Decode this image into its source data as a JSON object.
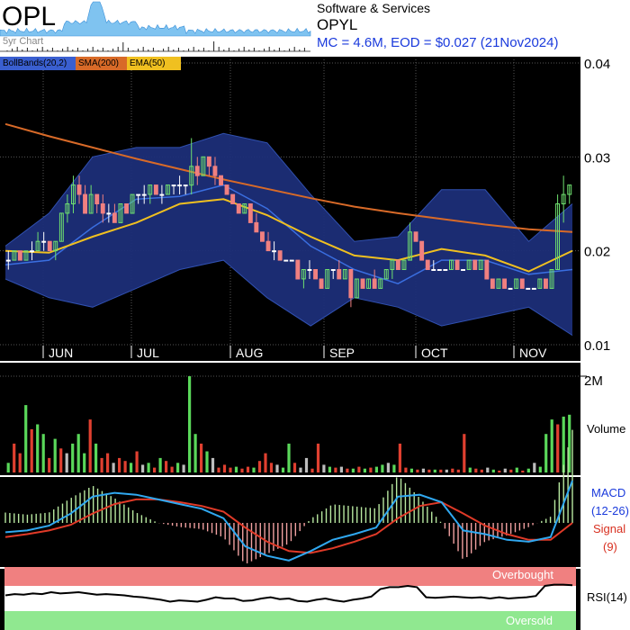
{
  "header": {
    "ticker": "OPL",
    "sub_label": "5yr Chart",
    "sector": "Software & Services",
    "code": "OPYL",
    "summary": "MC = 4.6M, EOD = $0.027 (21Nov2024)"
  },
  "legend": [
    {
      "label": "BollBands(20,2)",
      "color": "#3a5fd0"
    },
    {
      "label": "SMA(200)",
      "color": "#d86a28"
    },
    {
      "label": "EMA(50)",
      "color": "#f0c020"
    }
  ],
  "chart_data": {
    "type": "candlestick",
    "x_labels": [
      "JUN",
      "JUL",
      "AUG",
      "SEP",
      "OCT",
      "NOV"
    ],
    "price_ticks": [
      "0.04",
      "0.03",
      "0.02",
      "0.01"
    ],
    "ylim": [
      0.01,
      0.04
    ],
    "candles": [
      [
        0.019,
        0.02,
        0.018,
        0.019
      ],
      [
        0.019,
        0.02,
        0.019,
        0.02
      ],
      [
        0.02,
        0.02,
        0.019,
        0.019
      ],
      [
        0.019,
        0.02,
        0.019,
        0.02
      ],
      [
        0.02,
        0.021,
        0.019,
        0.02
      ],
      [
        0.02,
        0.022,
        0.02,
        0.021
      ],
      [
        0.021,
        0.022,
        0.02,
        0.021
      ],
      [
        0.021,
        0.021,
        0.02,
        0.02
      ],
      [
        0.02,
        0.021,
        0.019,
        0.021
      ],
      [
        0.021,
        0.024,
        0.021,
        0.024
      ],
      [
        0.024,
        0.026,
        0.023,
        0.025
      ],
      [
        0.025,
        0.028,
        0.024,
        0.027
      ],
      [
        0.027,
        0.028,
        0.025,
        0.026
      ],
      [
        0.026,
        0.027,
        0.024,
        0.024
      ],
      [
        0.024,
        0.027,
        0.024,
        0.026
      ],
      [
        0.026,
        0.026,
        0.024,
        0.025
      ],
      [
        0.025,
        0.026,
        0.023,
        0.024
      ],
      [
        0.024,
        0.025,
        0.023,
        0.024
      ],
      [
        0.024,
        0.025,
        0.023,
        0.023
      ],
      [
        0.023,
        0.025,
        0.023,
        0.025
      ],
      [
        0.025,
        0.025,
        0.024,
        0.024
      ],
      [
        0.024,
        0.026,
        0.024,
        0.026
      ],
      [
        0.026,
        0.026,
        0.025,
        0.026
      ],
      [
        0.026,
        0.027,
        0.025,
        0.026
      ],
      [
        0.026,
        0.027,
        0.025,
        0.027
      ],
      [
        0.027,
        0.027,
        0.026,
        0.026
      ],
      [
        0.026,
        0.027,
        0.025,
        0.026
      ],
      [
        0.026,
        0.027,
        0.026,
        0.027
      ],
      [
        0.027,
        0.027,
        0.026,
        0.027
      ],
      [
        0.027,
        0.028,
        0.026,
        0.027
      ],
      [
        0.027,
        0.027,
        0.026,
        0.027
      ],
      [
        0.027,
        0.032,
        0.026,
        0.029
      ],
      [
        0.029,
        0.03,
        0.027,
        0.028
      ],
      [
        0.028,
        0.03,
        0.028,
        0.03
      ],
      [
        0.03,
        0.03,
        0.028,
        0.029
      ],
      [
        0.029,
        0.03,
        0.027,
        0.028
      ],
      [
        0.028,
        0.028,
        0.027,
        0.027
      ],
      [
        0.027,
        0.027,
        0.026,
        0.026
      ],
      [
        0.026,
        0.026,
        0.025,
        0.025
      ],
      [
        0.025,
        0.025,
        0.024,
        0.024
      ],
      [
        0.024,
        0.025,
        0.024,
        0.025
      ],
      [
        0.025,
        0.025,
        0.023,
        0.023
      ],
      [
        0.023,
        0.024,
        0.022,
        0.022
      ],
      [
        0.022,
        0.022,
        0.021,
        0.021
      ],
      [
        0.021,
        0.022,
        0.02,
        0.02
      ],
      [
        0.02,
        0.021,
        0.019,
        0.02
      ],
      [
        0.02,
        0.02,
        0.019,
        0.019
      ],
      [
        0.019,
        0.019,
        0.019,
        0.019
      ],
      [
        0.019,
        0.019,
        0.019,
        0.019
      ],
      [
        0.019,
        0.019,
        0.017,
        0.017
      ],
      [
        0.017,
        0.018,
        0.016,
        0.018
      ],
      [
        0.018,
        0.019,
        0.017,
        0.018
      ],
      [
        0.018,
        0.018,
        0.017,
        0.017
      ],
      [
        0.017,
        0.017,
        0.016,
        0.016
      ],
      [
        0.016,
        0.018,
        0.016,
        0.018
      ],
      [
        0.018,
        0.018,
        0.017,
        0.018
      ],
      [
        0.018,
        0.019,
        0.017,
        0.017
      ],
      [
        0.017,
        0.018,
        0.017,
        0.018
      ],
      [
        0.018,
        0.018,
        0.014,
        0.015
      ],
      [
        0.015,
        0.017,
        0.015,
        0.017
      ],
      [
        0.017,
        0.017,
        0.016,
        0.016
      ],
      [
        0.016,
        0.017,
        0.016,
        0.017
      ],
      [
        0.017,
        0.018,
        0.016,
        0.016
      ],
      [
        0.016,
        0.017,
        0.016,
        0.017
      ],
      [
        0.017,
        0.018,
        0.017,
        0.018
      ],
      [
        0.018,
        0.019,
        0.017,
        0.019
      ],
      [
        0.019,
        0.019,
        0.018,
        0.018
      ],
      [
        0.018,
        0.019,
        0.018,
        0.019
      ],
      [
        0.019,
        0.023,
        0.019,
        0.022
      ],
      [
        0.022,
        0.022,
        0.021,
        0.021
      ],
      [
        0.021,
        0.021,
        0.019,
        0.019
      ],
      [
        0.019,
        0.019,
        0.018,
        0.018
      ],
      [
        0.018,
        0.019,
        0.018,
        0.018
      ],
      [
        0.018,
        0.018,
        0.018,
        0.018
      ],
      [
        0.018,
        0.018,
        0.018,
        0.018
      ],
      [
        0.018,
        0.019,
        0.018,
        0.019
      ],
      [
        0.019,
        0.019,
        0.018,
        0.018
      ],
      [
        0.018,
        0.018,
        0.018,
        0.018
      ],
      [
        0.018,
        0.019,
        0.018,
        0.019
      ],
      [
        0.019,
        0.019,
        0.018,
        0.018
      ],
      [
        0.018,
        0.019,
        0.018,
        0.019
      ],
      [
        0.019,
        0.019,
        0.017,
        0.017
      ],
      [
        0.017,
        0.017,
        0.016,
        0.016
      ],
      [
        0.016,
        0.017,
        0.016,
        0.017
      ],
      [
        0.017,
        0.017,
        0.016,
        0.016
      ],
      [
        0.016,
        0.016,
        0.016,
        0.016
      ],
      [
        0.016,
        0.017,
        0.016,
        0.017
      ],
      [
        0.017,
        0.017,
        0.016,
        0.016
      ],
      [
        0.016,
        0.016,
        0.016,
        0.016
      ],
      [
        0.016,
        0.016,
        0.016,
        0.016
      ],
      [
        0.016,
        0.017,
        0.016,
        0.017
      ],
      [
        0.017,
        0.017,
        0.016,
        0.016
      ],
      [
        0.016,
        0.018,
        0.016,
        0.018
      ],
      [
        0.018,
        0.026,
        0.018,
        0.025
      ],
      [
        0.025,
        0.028,
        0.023,
        0.026
      ],
      [
        0.026,
        0.027,
        0.025,
        0.027
      ]
    ],
    "sma200": [
      0.0335,
      0.0322,
      0.031,
      0.0298,
      0.0287,
      0.0276,
      0.0266,
      0.0256,
      0.0247,
      0.024,
      0.0234,
      0.0228,
      0.0223,
      0.022
    ],
    "ema50": [
      0.02,
      0.0198,
      0.0215,
      0.023,
      0.025,
      0.0255,
      0.0238,
      0.0215,
      0.0195,
      0.019,
      0.0202,
      0.0195,
      0.0178,
      0.02
    ],
    "boll_mid": [
      0.0185,
      0.019,
      0.0225,
      0.0255,
      0.0258,
      0.027,
      0.0245,
      0.0205,
      0.018,
      0.0165,
      0.019,
      0.019,
      0.0175,
      0.018
    ],
    "boll_upper": [
      0.0205,
      0.024,
      0.03,
      0.031,
      0.031,
      0.0325,
      0.0315,
      0.026,
      0.021,
      0.0215,
      0.0265,
      0.0265,
      0.021,
      0.025
    ],
    "boll_lower": [
      0.017,
      0.015,
      0.014,
      0.016,
      0.018,
      0.019,
      0.015,
      0.012,
      0.015,
      0.014,
      0.012,
      0.013,
      0.014,
      0.011
    ],
    "volume_label": "Volume",
    "volume_tick": "2M",
    "volume_max": 2000000,
    "volume": [
      [
        0.1,
        "g"
      ],
      [
        0.3,
        "r"
      ],
      [
        0.2,
        "r"
      ],
      [
        0.7,
        "g"
      ],
      [
        0.45,
        "r"
      ],
      [
        0.5,
        "g"
      ],
      [
        0.4,
        "g"
      ],
      [
        0.15,
        "r"
      ],
      [
        0.35,
        "g"
      ],
      [
        0.25,
        "r"
      ],
      [
        0.2,
        "w"
      ],
      [
        0.3,
        "g"
      ],
      [
        0.4,
        "g"
      ],
      [
        0.2,
        "g"
      ],
      [
        0.55,
        "r"
      ],
      [
        0.3,
        "g"
      ],
      [
        0.15,
        "r"
      ],
      [
        0.2,
        "r"
      ],
      [
        0.1,
        "w"
      ],
      [
        0.15,
        "r"
      ],
      [
        0.12,
        "r"
      ],
      [
        0.1,
        "g"
      ],
      [
        0.22,
        "r"
      ],
      [
        0.08,
        "w"
      ],
      [
        0.1,
        "g"
      ],
      [
        0.05,
        "r"
      ],
      [
        0.15,
        "g"
      ],
      [
        0.12,
        "r"
      ],
      [
        0.06,
        "r"
      ],
      [
        0.1,
        "g"
      ],
      [
        0.08,
        "w"
      ],
      [
        1.0,
        "g"
      ],
      [
        0.4,
        "g"
      ],
      [
        0.3,
        "r"
      ],
      [
        0.22,
        "g"
      ],
      [
        0.15,
        "w"
      ],
      [
        0.05,
        "r"
      ],
      [
        0.08,
        "r"
      ],
      [
        0.05,
        "r"
      ],
      [
        0.06,
        "g"
      ],
      [
        0.04,
        "r"
      ],
      [
        0.06,
        "r"
      ],
      [
        0.05,
        "g"
      ],
      [
        0.12,
        "r"
      ],
      [
        0.2,
        "r"
      ],
      [
        0.1,
        "r"
      ],
      [
        0.08,
        "w"
      ],
      [
        0.05,
        "g"
      ],
      [
        0.3,
        "g"
      ],
      [
        0.1,
        "r"
      ],
      [
        0.05,
        "w"
      ],
      [
        0.15,
        "w"
      ],
      [
        0.04,
        "r"
      ],
      [
        0.3,
        "r"
      ],
      [
        0.08,
        "w"
      ],
      [
        0.06,
        "g"
      ],
      [
        0.05,
        "r"
      ],
      [
        0.06,
        "w"
      ],
      [
        0.04,
        "r"
      ],
      [
        0.04,
        "g"
      ],
      [
        0.06,
        "r"
      ],
      [
        0.04,
        "g"
      ],
      [
        0.05,
        "r"
      ],
      [
        0.06,
        "g"
      ],
      [
        0.08,
        "g"
      ],
      [
        0.1,
        "w"
      ],
      [
        0.08,
        "g"
      ],
      [
        0.3,
        "r"
      ],
      [
        0.05,
        "r"
      ],
      [
        0.04,
        "g"
      ],
      [
        0.03,
        "r"
      ],
      [
        0.04,
        "w"
      ],
      [
        0.03,
        "r"
      ],
      [
        0.03,
        "g"
      ],
      [
        0.03,
        "r"
      ],
      [
        0.03,
        "w"
      ],
      [
        0.04,
        "r"
      ],
      [
        0.03,
        "r"
      ],
      [
        0.4,
        "r"
      ],
      [
        0.05,
        "g"
      ],
      [
        0.04,
        "r"
      ],
      [
        0.03,
        "r"
      ],
      [
        0.05,
        "w"
      ],
      [
        0.03,
        "g"
      ],
      [
        0.02,
        "r"
      ],
      [
        0.04,
        "w"
      ],
      [
        0.03,
        "r"
      ],
      [
        0.05,
        "g"
      ],
      [
        0.02,
        "r"
      ],
      [
        0.04,
        "g"
      ],
      [
        0.1,
        "w"
      ],
      [
        0.06,
        "g"
      ],
      [
        0.4,
        "g"
      ],
      [
        0.55,
        "g"
      ],
      [
        0.5,
        "r"
      ],
      [
        0.58,
        "g"
      ],
      [
        0.6,
        "g"
      ]
    ],
    "macd_label": "MACD",
    "macd_params": "(12-26)",
    "signal_label": "Signal",
    "signal_params": "(9)",
    "macd": [
      -0.001,
      -0.0008,
      -0.0003,
      0.001,
      0.0028,
      0.0032,
      0.003,
      0.0025,
      0.002,
      0.0015,
      0.0005,
      -0.0025,
      -0.0035,
      -0.004,
      -0.003,
      -0.0018,
      -0.0012,
      -0.0005,
      0.0028,
      0.003,
      0.0022,
      -0.0008,
      -0.0012,
      -0.0018,
      -0.002,
      -0.0015,
      0.0045
    ],
    "signal": [
      -0.0015,
      -0.0012,
      -0.0008,
      -0.0002,
      0.001,
      0.002,
      0.0025,
      0.0025,
      0.0022,
      0.0018,
      0.0012,
      -0.0005,
      -0.002,
      -0.003,
      -0.0032,
      -0.0027,
      -0.002,
      -0.0012,
      0.0005,
      0.0018,
      0.0022,
      0.001,
      -0.0003,
      -0.0012,
      -0.0018,
      -0.0018,
      0.0
    ],
    "macd_range": [
      -0.0045,
      0.0045
    ],
    "rsi_label": "RSI(14)",
    "overbought_label": "Overbought",
    "oversold_label": "Oversold",
    "rsi": [
      55,
      57,
      56,
      58,
      57,
      60,
      58,
      59,
      60,
      58,
      56,
      57,
      56,
      55,
      53,
      52,
      50,
      48,
      45,
      47,
      46,
      45,
      48,
      52,
      50,
      50,
      46,
      47,
      50,
      52,
      49,
      50,
      46,
      45,
      48,
      50,
      47,
      45,
      48,
      50,
      53,
      65,
      68,
      68,
      70,
      68,
      52,
      51,
      52,
      53,
      52,
      51,
      52,
      50,
      52,
      50,
      51,
      52,
      54,
      70,
      72,
      72,
      71
    ],
    "rsi_range": [
      0,
      100
    ]
  }
}
